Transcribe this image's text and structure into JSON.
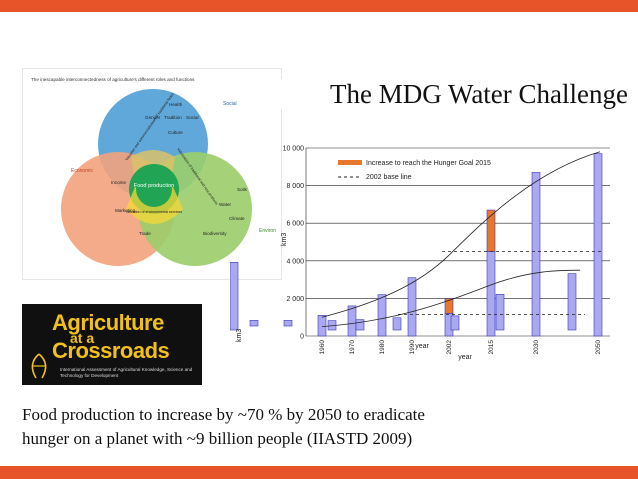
{
  "slide": {
    "title": "The MDG Water Challenge",
    "caption_line1": "Food production to increase by ~70 % by 2050 to eradicate",
    "caption_line2": "hunger on a planet with ~9 billion people (IIASTD 2009)",
    "colors": {
      "accent": "#e8542a",
      "bar_fill": "#a9a8f0",
      "increase": "#e8762b"
    }
  },
  "venn": {
    "header": "The inescapable interconnectedness of agriculture's different roles and functions",
    "social": {
      "label": "Social",
      "items": [
        "Health",
        "Gender",
        "Tradition",
        "Social",
        "Culture"
      ]
    },
    "economic": {
      "label": "Economic",
      "items": [
        "Income",
        "Marketing",
        "Trade"
      ]
    },
    "environmental": {
      "label": "Environ",
      "items": [
        "Soils",
        "Water",
        "Climate",
        "Biodiversity"
      ]
    },
    "overlap_se": "Valuation and commercialization of traditional foods",
    "overlap_sv": "Valorization of traditional and new products",
    "overlap_ev": "Valuation of environmental services",
    "center": "Food production"
  },
  "logo": {
    "line1": "Agriculture",
    "line2": "at a",
    "line3": "Crossroads",
    "org": "International Assessment of Agricultural Knowledge, Science and Technology for Development",
    "mark": "IAASTD"
  },
  "chart_data": {
    "type": "bar",
    "x": [
      "1960",
      "1970",
      "1980",
      "1990",
      "2002",
      "2015",
      "2030",
      "2050"
    ],
    "series": [
      {
        "name": "",
        "values": [
          1100,
          1600,
          2200,
          3100,
          1200,
          4500,
          8700,
          9700
        ]
      },
      {
        "name": "Increase to reach the Hunger Goal 2015",
        "values": [
          0,
          0,
          0,
          0,
          800,
          2200,
          0,
          0
        ]
      }
    ],
    "secondary_values": [
      500,
      550,
      650,
      750,
      1900,
      3000,
      3600
    ],
    "baseline": {
      "name": "2002 base line",
      "values": [
        4500,
        1150
      ]
    },
    "ylim": [
      0,
      10000
    ],
    "yticks": [
      "0",
      "2 000",
      "4 000",
      "6 000",
      "8 000",
      "10 000"
    ],
    "ylabel": "km3",
    "ylabel_left": "km3",
    "xlabel": "year",
    "xlabel_overlap": "year",
    "grid": true,
    "legend_position": "top"
  }
}
